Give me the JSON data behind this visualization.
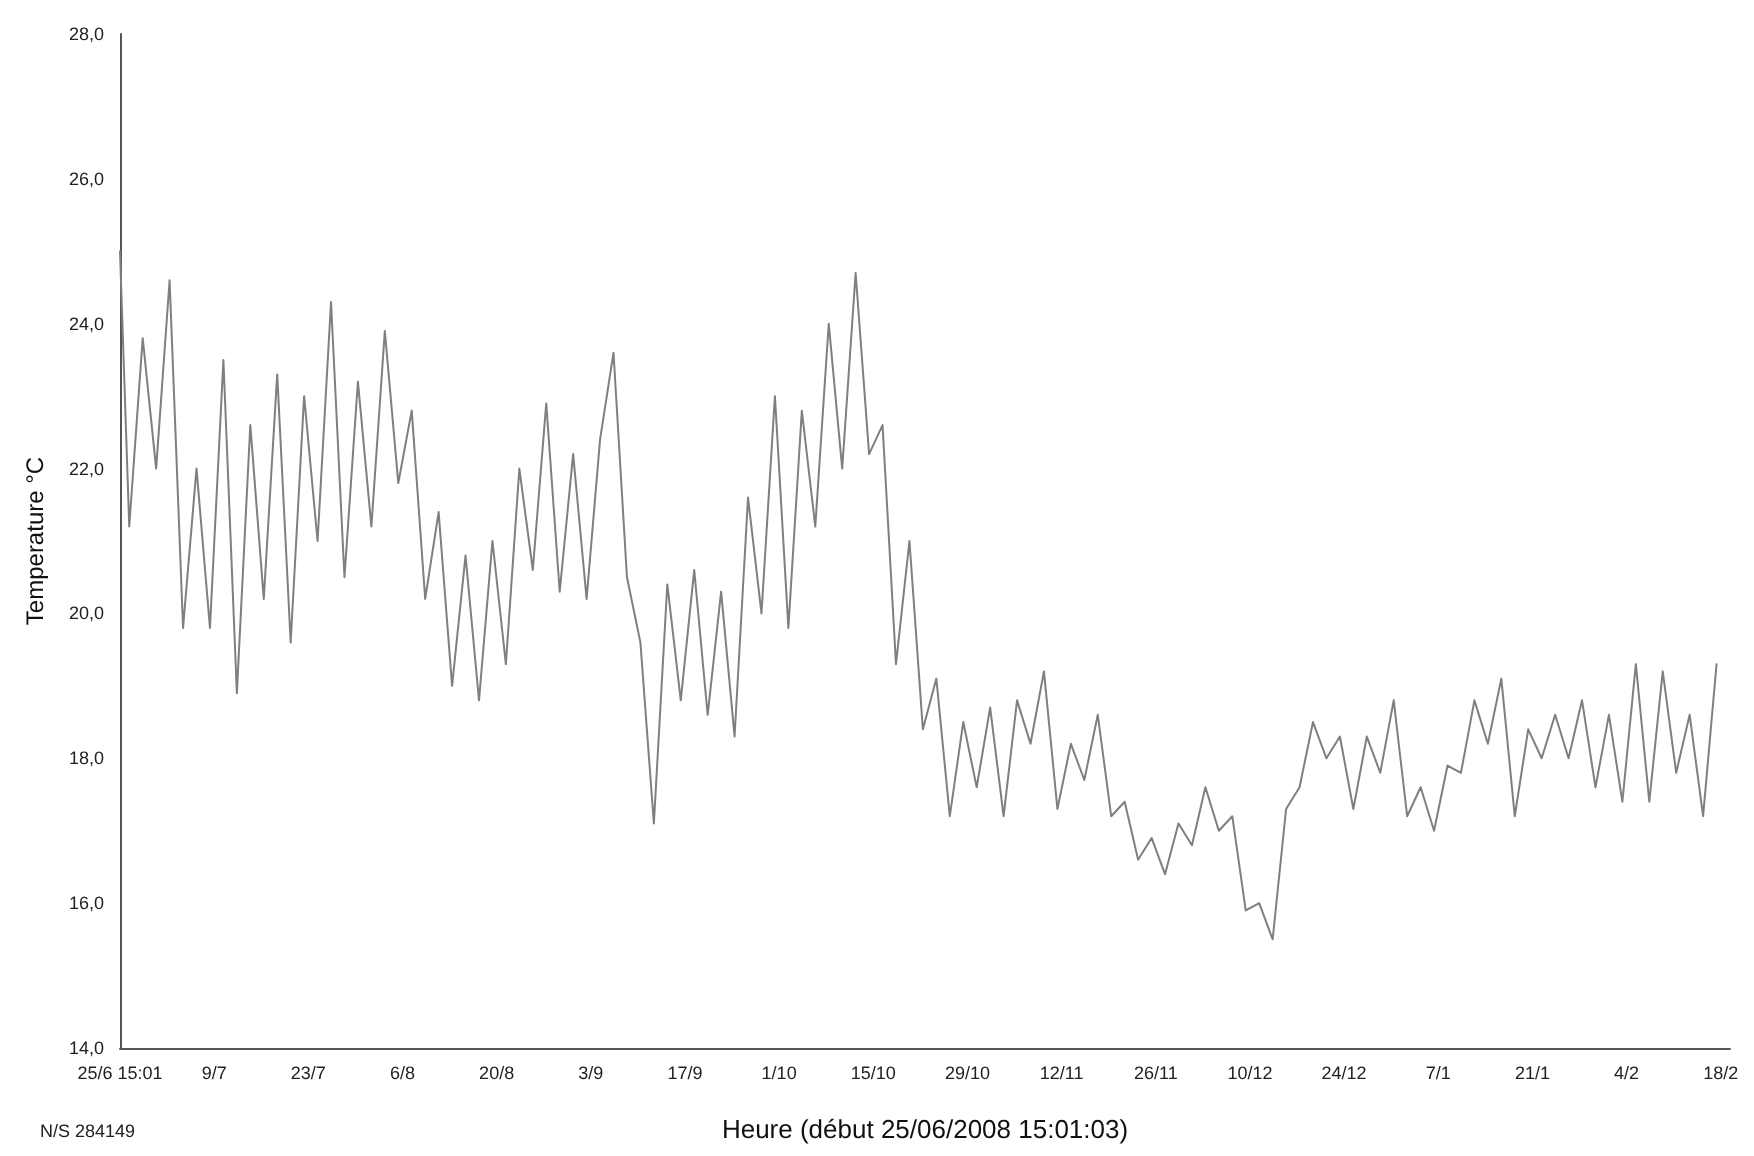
{
  "chart_data": {
    "type": "line",
    "xlabel": "Heure (début 25/06/2008 15:01:03)",
    "ylabel": "Temperature °C",
    "annotations": [
      "N/S 284149"
    ],
    "x": [
      "2008-06-25T15:01",
      "2008-06-27",
      "2008-06-29",
      "2008-07-01",
      "2008-07-03",
      "2008-07-05",
      "2008-07-07",
      "2008-07-09",
      "2008-07-11",
      "2008-07-13",
      "2008-07-15",
      "2008-07-17",
      "2008-07-19",
      "2008-07-21",
      "2008-07-23",
      "2008-07-25",
      "2008-07-27",
      "2008-07-29",
      "2008-07-31",
      "2008-08-02",
      "2008-08-04",
      "2008-08-06",
      "2008-08-08",
      "2008-08-10",
      "2008-08-12",
      "2008-08-14",
      "2008-08-16",
      "2008-08-18",
      "2008-08-20",
      "2008-08-22",
      "2008-08-24",
      "2008-08-26",
      "2008-08-28",
      "2008-08-30",
      "2008-09-01",
      "2008-09-03",
      "2008-09-05",
      "2008-09-07",
      "2008-09-09",
      "2008-09-11",
      "2008-09-13",
      "2008-09-15",
      "2008-09-17",
      "2008-09-19",
      "2008-09-21",
      "2008-09-23",
      "2008-09-25",
      "2008-09-27",
      "2008-09-29",
      "2008-10-01",
      "2008-10-03",
      "2008-10-05",
      "2008-10-07",
      "2008-10-09",
      "2008-10-11",
      "2008-10-13",
      "2008-10-15",
      "2008-10-17",
      "2008-10-19",
      "2008-10-21",
      "2008-10-23",
      "2008-10-25",
      "2008-10-27",
      "2008-10-29",
      "2008-10-31",
      "2008-11-02",
      "2008-11-04",
      "2008-11-06",
      "2008-11-08",
      "2008-11-10",
      "2008-11-12",
      "2008-11-14",
      "2008-11-16",
      "2008-11-18",
      "2008-11-20",
      "2008-11-22",
      "2008-11-24",
      "2008-11-26",
      "2008-11-28",
      "2008-11-30",
      "2008-12-02",
      "2008-12-04",
      "2008-12-06",
      "2008-12-08",
      "2008-12-10",
      "2008-12-12",
      "2008-12-14",
      "2008-12-16",
      "2008-12-18",
      "2008-12-20",
      "2008-12-22",
      "2008-12-24",
      "2008-12-26",
      "2008-12-28",
      "2008-12-30",
      "2009-01-01",
      "2009-01-03",
      "2009-01-05",
      "2009-01-07",
      "2009-01-09",
      "2009-01-11",
      "2009-01-13",
      "2009-01-15",
      "2009-01-17",
      "2009-01-19",
      "2009-01-21",
      "2009-01-23",
      "2009-01-25",
      "2009-01-27",
      "2009-01-29",
      "2009-01-31",
      "2009-02-02",
      "2009-02-04",
      "2009-02-06",
      "2009-02-08",
      "2009-02-10",
      "2009-02-12",
      "2009-02-14",
      "2009-02-16",
      "2009-02-18"
    ],
    "series": [
      {
        "color": "#7f7f7f",
        "values": [
          25.0,
          21.2,
          23.8,
          22.0,
          24.6,
          19.8,
          22.0,
          19.8,
          23.5,
          18.9,
          22.6,
          20.2,
          23.3,
          19.6,
          23.0,
          21.0,
          24.3,
          20.5,
          23.2,
          21.2,
          23.9,
          21.8,
          22.8,
          20.2,
          21.4,
          19.0,
          20.8,
          18.8,
          21.0,
          19.3,
          22.0,
          20.6,
          22.9,
          20.3,
          22.2,
          20.2,
          22.4,
          23.6,
          20.5,
          19.6,
          17.1,
          20.4,
          18.8,
          20.6,
          18.6,
          20.3,
          18.3,
          21.6,
          20.0,
          23.0,
          19.8,
          22.8,
          21.2,
          24.0,
          22.0,
          24.7,
          22.2,
          22.6,
          19.3,
          21.0,
          18.4,
          19.1,
          17.2,
          18.5,
          17.6,
          18.7,
          17.2,
          18.8,
          18.2,
          19.2,
          17.3,
          18.2,
          17.7,
          18.6,
          17.2,
          17.4,
          16.6,
          16.9,
          16.4,
          17.1,
          16.8,
          17.6,
          17.0,
          17.2,
          15.9,
          16.0,
          15.5,
          17.3,
          17.6,
          18.5,
          18.0,
          18.3,
          17.3,
          18.3,
          17.8,
          18.8,
          17.2,
          17.6,
          17.0,
          17.9,
          17.8,
          18.8,
          18.2,
          19.1,
          17.2,
          18.4,
          18.0,
          18.6,
          18.0,
          18.8,
          17.6,
          18.6,
          17.4,
          19.3,
          17.4,
          19.2,
          17.8,
          18.6,
          17.2,
          19.3
        ]
      }
    ],
    "xlim": [
      "2008-06-25T15:01",
      "2009-02-20"
    ],
    "xticks": [
      {
        "value": "2008-06-25T15:01",
        "label": "25/6 15:01"
      },
      {
        "value": "2008-07-09T15:01",
        "label": "9/7"
      },
      {
        "value": "2008-07-23T15:01",
        "label": "23/7"
      },
      {
        "value": "2008-08-06T15:01",
        "label": "6/8"
      },
      {
        "value": "2008-08-20T15:01",
        "label": "20/8"
      },
      {
        "value": "2008-09-03T15:01",
        "label": "3/9"
      },
      {
        "value": "2008-09-17T15:01",
        "label": "17/9"
      },
      {
        "value": "2008-10-01T15:01",
        "label": "1/10"
      },
      {
        "value": "2008-10-15T15:01",
        "label": "15/10"
      },
      {
        "value": "2008-10-29T15:01",
        "label": "29/10"
      },
      {
        "value": "2008-11-12T15:01",
        "label": "12/11"
      },
      {
        "value": "2008-11-26T15:01",
        "label": "26/11"
      },
      {
        "value": "2008-12-10T15:01",
        "label": "10/12"
      },
      {
        "value": "2008-12-24T15:01",
        "label": "24/12"
      },
      {
        "value": "2009-01-07T15:01",
        "label": "7/1"
      },
      {
        "value": "2009-01-21T15:01",
        "label": "21/1"
      },
      {
        "value": "2009-02-04T15:01",
        "label": "4/2"
      },
      {
        "value": "2009-02-18T15:01",
        "label": "18/2"
      }
    ],
    "ylim": [
      14,
      28
    ],
    "yticks": [
      {
        "value": 14,
        "label": "14,0"
      },
      {
        "value": 16,
        "label": "16,0"
      },
      {
        "value": 18,
        "label": "18,0"
      },
      {
        "value": 20,
        "label": "20,0"
      },
      {
        "value": 22,
        "label": "22,0"
      },
      {
        "value": 24,
        "label": "24,0"
      },
      {
        "value": 26,
        "label": "26,0"
      },
      {
        "value": 28,
        "label": "28,0"
      }
    ],
    "grid": false,
    "marker": "none",
    "line_style": "solid"
  }
}
